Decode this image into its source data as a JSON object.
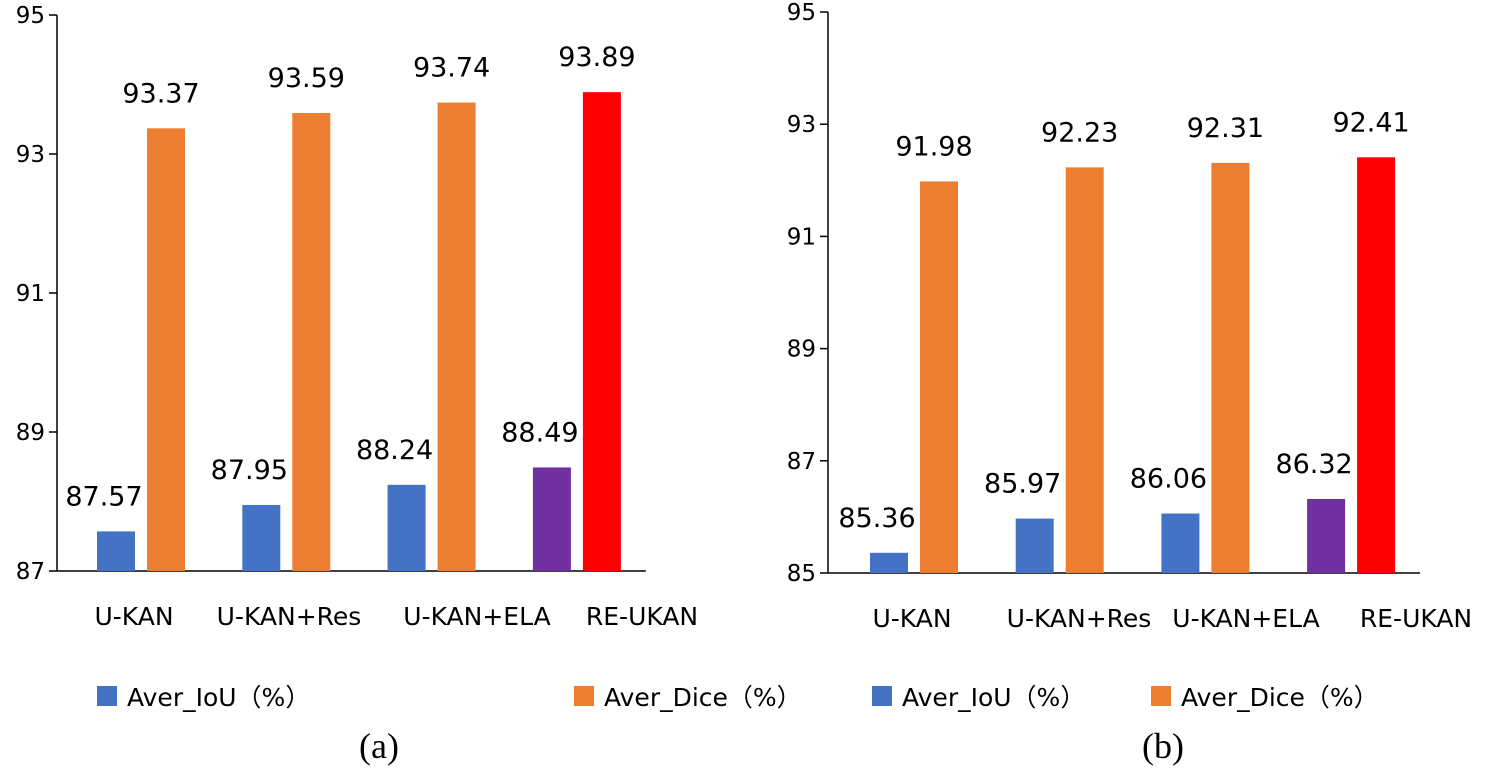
{
  "colors": {
    "iou": "#4472C4",
    "dice": "#ED7D31",
    "highlight_iou": "#7030A0",
    "highlight_dice": "#FF0000",
    "axis": "#000000"
  },
  "chart_data": [
    {
      "type": "bar",
      "caption": "(a)",
      "categories": [
        "U-KAN",
        "U-KAN+Res",
        "U-KAN+ELA",
        "RE-UKAN"
      ],
      "series": [
        {
          "name": "Aver_IoU（%）",
          "values": [
            87.57,
            87.95,
            88.24,
            88.49
          ],
          "value_labels": [
            "87.57",
            "87.95",
            "88.24",
            "88.49"
          ]
        },
        {
          "name": "Aver_Dice（%）",
          "values": [
            93.37,
            93.59,
            93.74,
            93.89
          ],
          "value_labels": [
            "93.37",
            "93.59",
            "93.74",
            "93.89"
          ]
        }
      ],
      "highlight_category": "RE-UKAN",
      "ylim": [
        87,
        95
      ],
      "yticks": [
        87,
        89,
        91,
        93,
        95
      ],
      "ytick_labels": [
        "87",
        "89",
        "91",
        "93",
        "95"
      ],
      "legend_position": "bottom",
      "grid": false
    },
    {
      "type": "bar",
      "caption": "(b)",
      "categories": [
        "U-KAN",
        "U-KAN+Res",
        "U-KAN+ELA",
        "RE-UKAN"
      ],
      "series": [
        {
          "name": "Aver_IoU（%）",
          "values": [
            85.36,
            85.97,
            86.06,
            86.32
          ],
          "value_labels": [
            "85.36",
            "85.97",
            "86.06",
            "86.32"
          ]
        },
        {
          "name": "Aver_Dice（%）",
          "values": [
            91.98,
            92.23,
            92.31,
            92.41
          ],
          "value_labels": [
            "91.98",
            "92.23",
            "92.31",
            "92.41"
          ]
        }
      ],
      "highlight_category": "RE-UKAN",
      "ylim": [
        85,
        95
      ],
      "yticks": [
        85,
        87,
        89,
        91,
        93,
        95
      ],
      "ytick_labels": [
        "85",
        "87",
        "89",
        "91",
        "93",
        "95"
      ],
      "legend_position": "bottom",
      "grid": false
    }
  ]
}
